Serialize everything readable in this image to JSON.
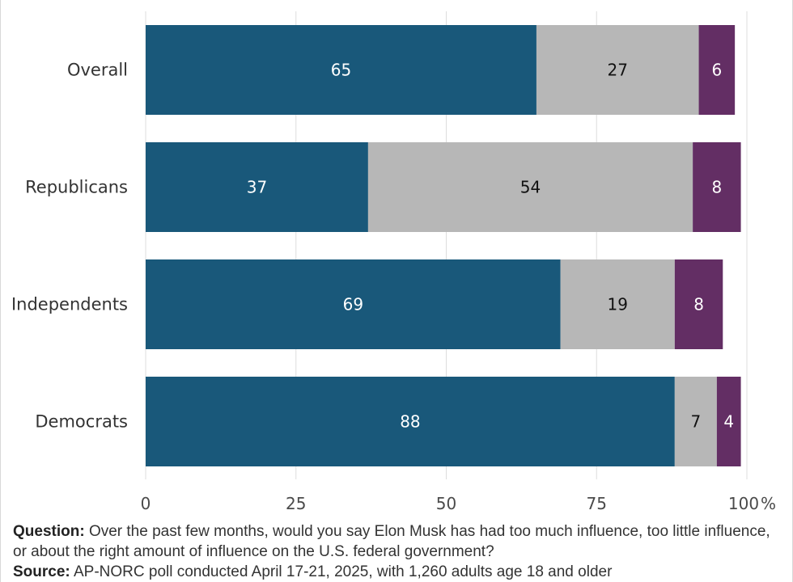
{
  "chart_data": {
    "type": "bar",
    "orientation": "horizontal",
    "stacked": true,
    "categories": [
      "Overall",
      "Republicans",
      "Independents",
      "Democrats"
    ],
    "series": [
      {
        "values": [
          65,
          37,
          69,
          88
        ],
        "color": "#19587a",
        "label_color": "#ffffff"
      },
      {
        "values": [
          27,
          54,
          19,
          7
        ],
        "color": "#b7b7b7",
        "label_color": "#111111"
      },
      {
        "values": [
          6,
          8,
          8,
          4
        ],
        "color": "#632e64",
        "label_color": "#ffffff"
      }
    ],
    "xlim": [
      0,
      100
    ],
    "xticks": [
      "0",
      "25",
      "50",
      "75",
      "100"
    ],
    "x_unit_suffix": "%",
    "grid": true
  },
  "caption": {
    "question_label": "Question:",
    "question_text": "Over the past few months, would you say Elon Musk has had too much influence, too little influence, or about the right amount of influence on the U.S. federal government?",
    "source_label": "Source:",
    "source_text": "AP-NORC poll conducted April 17-21, 2025, with 1,260 adults age 18 and older"
  }
}
